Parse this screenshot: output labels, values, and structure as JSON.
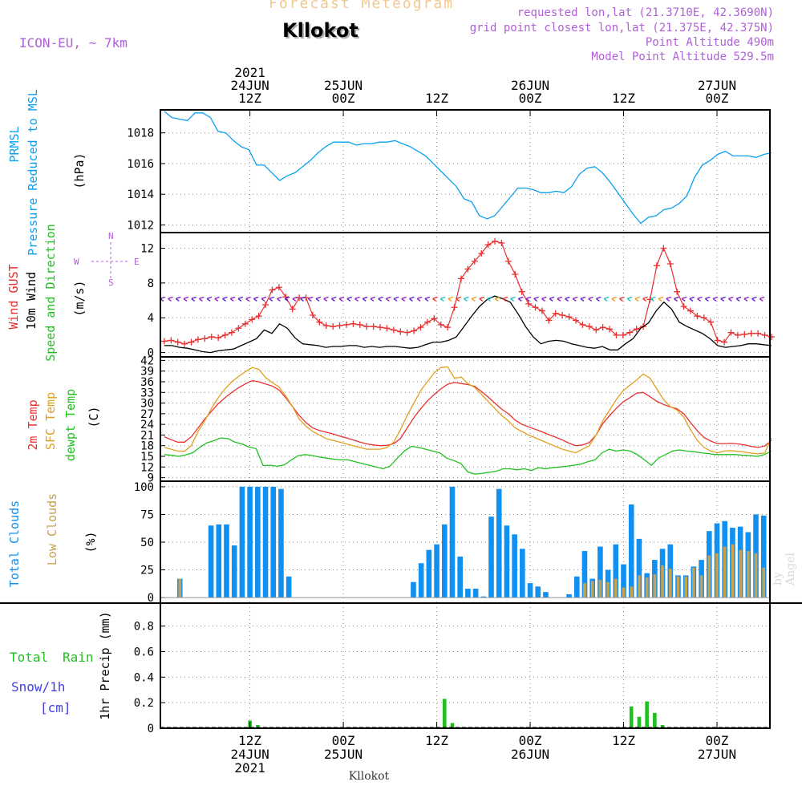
{
  "header": {
    "title": "Forecast Meteogram",
    "location": "Kllokot",
    "model": "ICON-EU, ~ 7km",
    "requested": "requested lon,lat (21.3710E, 42.3690N)",
    "grid": "grid point closest lon,lat (21.375E, 42.375N)",
    "point_altitude": "Point Altitude 490m",
    "model_altitude": "Model Point Altitude 529.5m",
    "footer_location": "Kllokot",
    "watermark": "by Angel"
  },
  "colors": {
    "pressure": "#0aa0f0",
    "gust": "#e83030",
    "wind": "#000000",
    "direction": "#20c020",
    "temp2m": "#e83030",
    "sfc": "#e0a020",
    "dewpt": "#20c020",
    "total_clouds": "#1090f0",
    "low_clouds": "#c8a050",
    "rain": "#20c020",
    "snow": "#4040e0",
    "axis_label": "#b060d8"
  },
  "time_axis": {
    "top_labels": [
      {
        "x": 12,
        "lines": [
          "2021",
          "24JUN",
          "12Z"
        ]
      },
      {
        "x": 24,
        "lines": [
          "25JUN",
          "00Z"
        ]
      },
      {
        "x": 36,
        "lines": [
          "12Z"
        ]
      },
      {
        "x": 48,
        "lines": [
          "26JUN",
          "00Z"
        ]
      },
      {
        "x": 60,
        "lines": [
          "12Z"
        ]
      },
      {
        "x": 72,
        "lines": [
          "27JUN",
          "00Z"
        ]
      }
    ],
    "bottom_labels": [
      {
        "x": 12,
        "lines": [
          "12Z",
          "24JUN",
          "2021"
        ]
      },
      {
        "x": 24,
        "lines": [
          "00Z",
          "25JUN"
        ]
      },
      {
        "x": 36,
        "lines": [
          "12Z"
        ]
      },
      {
        "x": 48,
        "lines": [
          "00Z",
          "26JUN"
        ]
      },
      {
        "x": 60,
        "lines": [
          "12Z"
        ]
      },
      {
        "x": 72,
        "lines": [
          "00Z",
          "27JUN"
        ]
      }
    ],
    "xlim": [
      0.5,
      78.8
    ],
    "unit": "hours since 24JUN 00Z"
  },
  "chart_data": [
    {
      "type": "line",
      "panel": "pressure",
      "ylabel": [
        "PRMSL",
        "Pressure Reduced to MSL"
      ],
      "unit": "(hPa)",
      "ylim": [
        1011.5,
        1019.5
      ],
      "yticks": [
        1012,
        1014,
        1016,
        1018
      ],
      "ytick_labels": [
        "1012",
        "1014",
        "1016",
        "1018"
      ],
      "grid": true,
      "series": [
        {
          "name": "PRMSL",
          "values": [
            1019.4,
            1019.0,
            1018.9,
            1018.8,
            1019.3,
            1019.3,
            1019.0,
            1018.1,
            1018.0,
            1017.5,
            1017.1,
            1016.9,
            1015.9,
            1015.9,
            1015.4,
            1014.9,
            1015.2,
            1015.4,
            1015.8,
            1016.2,
            1016.7,
            1017.1,
            1017.4,
            1017.4,
            1017.4,
            1017.2,
            1017.3,
            1017.3,
            1017.4,
            1017.4,
            1017.5,
            1017.3,
            1017.1,
            1016.8,
            1016.5,
            1016.0,
            1015.5,
            1015.0,
            1014.5,
            1013.7,
            1013.5,
            1012.6,
            1012.4,
            1012.6,
            1013.2,
            1013.8,
            1014.4,
            1014.4,
            1014.3,
            1014.1,
            1014.1,
            1014.2,
            1014.1,
            1014.5,
            1015.3,
            1015.7,
            1015.8,
            1015.4,
            1014.8,
            1014.1,
            1013.4,
            1012.7,
            1012.1,
            1012.5,
            1012.6,
            1013.0,
            1013.1,
            1013.4,
            1013.9,
            1015.1,
            1015.9,
            1016.2,
            1016.6,
            1016.8,
            1016.5,
            1016.5,
            1016.5,
            1016.4,
            1016.6,
            1016.7
          ]
        }
      ]
    },
    {
      "type": "line",
      "panel": "wind",
      "ylabel": [
        "Wind GUST",
        "10m Wind",
        "Speed and Direction"
      ],
      "unit": "(m/s)",
      "compass": [
        "N",
        "W",
        "E",
        "S"
      ],
      "ylim": [
        -0.5,
        13.8
      ],
      "yticks": [
        0,
        4,
        8,
        12
      ],
      "ytick_labels": [
        "0",
        "4",
        "8",
        "12"
      ],
      "grid": true,
      "series": [
        {
          "name": "Wind GUST",
          "values": [
            1.3,
            1.4,
            1.2,
            1.0,
            1.2,
            1.5,
            1.6,
            1.8,
            1.7,
            2.0,
            2.3,
            2.8,
            3.3,
            3.8,
            4.2,
            5.5,
            7.2,
            7.5,
            6.4,
            5.0,
            6.3,
            6.3,
            4.3,
            3.5,
            3.1,
            3.0,
            3.1,
            3.2,
            3.3,
            3.2,
            3.0,
            3.0,
            2.9,
            2.8,
            2.6,
            2.4,
            2.3,
            2.5,
            2.9,
            3.5,
            3.9,
            3.2,
            2.9,
            5.2,
            8.5,
            9.6,
            10.5,
            11.4,
            12.4,
            12.8,
            12.6,
            10.5,
            9.0,
            7.0,
            5.6,
            5.2,
            4.8,
            3.7,
            4.5,
            4.3,
            4.1,
            3.7,
            3.2,
            3.0,
            2.6,
            2.9,
            2.7,
            2.0,
            2.0,
            2.3,
            2.7,
            3.0,
            6.1,
            10.0,
            12.0,
            10.2,
            7.0,
            5.3,
            4.8,
            4.2,
            4.0,
            3.5,
            1.4,
            1.2,
            2.3,
            2.0,
            2.1,
            2.2,
            2.2,
            2.0,
            1.8
          ]
        },
        {
          "name": "10m Wind",
          "values": [
            0.8,
            0.8,
            0.6,
            0.5,
            0.3,
            0.1,
            0.0,
            0.2,
            0.3,
            0.4,
            0.8,
            1.2,
            1.6,
            2.6,
            2.2,
            3.3,
            2.8,
            1.7,
            1.0,
            0.9,
            0.8,
            0.6,
            0.7,
            0.7,
            0.8,
            0.8,
            0.6,
            0.7,
            0.6,
            0.7,
            0.7,
            0.6,
            0.5,
            0.6,
            0.9,
            1.2,
            1.2,
            1.4,
            1.8,
            3.0,
            4.2,
            5.3,
            6.1,
            6.5,
            6.2,
            5.8,
            4.5,
            3.0,
            1.8,
            1.0,
            1.3,
            1.4,
            1.3,
            1.0,
            0.8,
            0.6,
            0.5,
            0.7,
            0.3,
            0.3,
            1.0,
            1.6,
            2.8,
            3.4,
            4.8,
            5.8,
            5.0,
            3.5,
            3.0,
            2.6,
            2.2,
            1.6,
            0.8,
            0.6,
            0.7,
            0.8,
            1.0,
            1.0,
            0.9,
            0.8
          ]
        }
      ],
      "direction_arrows": {
        "name": "Speed and Direction",
        "level": 6.2
      }
    },
    {
      "type": "line",
      "panel": "temperature",
      "ylabel": [
        "2m Temp",
        "SFC Temp",
        "dewpt Temp"
      ],
      "unit": "(C)",
      "ylim": [
        8,
        43
      ],
      "yticks": [
        9,
        12,
        15,
        18,
        21,
        24,
        27,
        30,
        33,
        36,
        39,
        42
      ],
      "ytick_labels": [
        "9",
        "12",
        "15",
        "18",
        "21",
        "24",
        "27",
        "30",
        "33",
        "36",
        "39",
        "42"
      ],
      "grid": true,
      "series": [
        {
          "name": "2m Temp",
          "values": [
            20.5,
            19.7,
            19.0,
            19.0,
            20.5,
            23.0,
            25.5,
            27.7,
            29.8,
            31.5,
            33.0,
            34.3,
            35.4,
            36.3,
            36.0,
            35.4,
            34.8,
            33.7,
            31.5,
            29.0,
            26.5,
            24.5,
            23.0,
            22.3,
            21.8,
            21.3,
            20.7,
            20.2,
            19.6,
            19.0,
            18.5,
            18.2,
            18.0,
            18.1,
            18.6,
            20.0,
            23.0,
            25.9,
            28.4,
            30.6,
            32.4,
            34.0,
            35.3,
            35.8,
            35.5,
            35.2,
            34.7,
            33.3,
            31.7,
            30.0,
            28.3,
            27.0,
            25.2,
            24.0,
            23.3,
            22.6,
            21.9,
            21.1,
            20.4,
            19.6,
            18.7,
            18.0,
            18.2,
            18.9,
            21.0,
            24.2,
            26.5,
            28.5,
            30.3,
            31.5,
            32.8,
            33.0,
            31.8,
            30.5,
            29.6,
            28.9,
            28.4,
            27.0,
            24.5,
            22.2,
            20.3,
            19.3,
            18.6,
            18.6,
            18.7,
            18.5,
            18.2,
            17.8,
            17.5,
            17.9,
            19.5
          ]
        },
        {
          "name": "SFC Temp",
          "values": [
            17.5,
            17.0,
            16.5,
            16.4,
            18.0,
            22.0,
            25.0,
            28.5,
            31.5,
            34.0,
            36.0,
            37.5,
            38.8,
            40.0,
            39.5,
            37.2,
            35.8,
            34.5,
            32.0,
            29.0,
            25.5,
            23.5,
            22.0,
            21.0,
            20.0,
            19.5,
            19.0,
            18.5,
            18.0,
            17.5,
            17.0,
            17.0,
            17.0,
            17.5,
            19.0,
            22.5,
            26.5,
            30.0,
            33.5,
            36.0,
            38.5,
            40.0,
            40.2,
            37.0,
            37.3,
            35.5,
            34.4,
            32.5,
            30.5,
            28.5,
            26.5,
            25.0,
            23.0,
            22.0,
            21.0,
            20.2,
            19.4,
            18.6,
            17.8,
            17.0,
            16.5,
            16.0,
            17.0,
            18.0,
            21.0,
            25.0,
            28.0,
            31.0,
            33.5,
            35.0,
            36.5,
            38.2,
            37.0,
            34.0,
            31.0,
            29.0,
            28.0,
            26.0,
            22.5,
            19.5,
            17.5,
            16.5,
            16.0,
            16.5,
            16.6,
            16.4,
            16.2,
            15.9,
            15.7,
            16.0,
            20.2
          ]
        },
        {
          "name": "dewpt Temp",
          "values": [
            15.5,
            15.3,
            15.0,
            15.4,
            16.0,
            17.5,
            18.8,
            19.4,
            20.2,
            20.0,
            19.0,
            18.5,
            17.6,
            17.2,
            12.4,
            12.5,
            12.2,
            12.6,
            14.0,
            15.2,
            15.5,
            15.2,
            14.8,
            14.5,
            14.2,
            14.0,
            14.0,
            13.5,
            13.0,
            12.5,
            12.0,
            11.5,
            12.3,
            14.5,
            16.5,
            17.8,
            17.5,
            17.0,
            16.5,
            16.0,
            14.5,
            13.8,
            13.0,
            10.6,
            10.0,
            10.2,
            10.5,
            10.8,
            11.5,
            11.5,
            11.2,
            11.5,
            11.0,
            11.8,
            11.5,
            11.8,
            12.0,
            12.2,
            12.5,
            12.8,
            13.5,
            14.0,
            16.0,
            17.0,
            16.5,
            16.8,
            16.5,
            15.5,
            14.0,
            12.5,
            14.5,
            15.5,
            16.5,
            16.8,
            16.5,
            16.3,
            16.0,
            15.8,
            15.5,
            15.5,
            15.5,
            15.5,
            15.3,
            15.2,
            15.0,
            15.5,
            16.5
          ]
        }
      ]
    },
    {
      "type": "bar",
      "panel": "clouds",
      "ylabel": [
        "Total Clouds",
        "Low Clouds"
      ],
      "unit": "(%)",
      "ylim": [
        -5,
        105
      ],
      "yticks": [
        0,
        25,
        50,
        75,
        100
      ],
      "ytick_labels": [
        "0",
        "25",
        "50",
        "75",
        "100"
      ],
      "grid": true,
      "x": [
        3,
        4,
        5,
        6,
        7,
        8,
        9,
        10,
        11,
        12,
        13,
        14,
        15,
        16,
        17,
        18,
        19,
        20,
        21,
        22,
        23,
        24,
        25,
        26,
        27,
        28,
        29,
        30,
        31,
        32,
        33,
        34,
        35,
        36,
        37,
        38,
        39,
        40,
        41,
        42,
        43,
        44,
        45,
        46,
        47,
        48,
        49,
        50,
        51,
        52,
        53,
        54,
        55,
        56,
        57,
        58,
        59,
        60,
        61,
        62,
        63,
        64,
        65,
        66,
        67,
        68,
        69,
        70,
        71,
        72,
        73,
        74,
        75,
        76,
        77,
        78
      ],
      "series": [
        {
          "name": "Total Clouds",
          "values": [
            17,
            0,
            0,
            0,
            65,
            66,
            66,
            47,
            100,
            100,
            100,
            100,
            100,
            98,
            19,
            0,
            0,
            0,
            0,
            0,
            0,
            0,
            0,
            0,
            0,
            0,
            0,
            0,
            0,
            0,
            14,
            31,
            43,
            48,
            66,
            100,
            37,
            8,
            8,
            1,
            73,
            98,
            65,
            57,
            44,
            13,
            10,
            5,
            0,
            0,
            3,
            19,
            42,
            17,
            46,
            25,
            48,
            30,
            84,
            53,
            22,
            34,
            44,
            48,
            20,
            20,
            28,
            34,
            60,
            67,
            69,
            63,
            64,
            59,
            75,
            74
          ]
        },
        {
          "name": "Low Clouds",
          "values": [
            17,
            0,
            0,
            0,
            0,
            0,
            0,
            0,
            0,
            0,
            0,
            0,
            0,
            0,
            0,
            0,
            0,
            0,
            0,
            0,
            0,
            0,
            0,
            0,
            0,
            0,
            0,
            0,
            0,
            0,
            0,
            0,
            0,
            0,
            0,
            0,
            0,
            0,
            0,
            0,
            0,
            0,
            0,
            0,
            0,
            0,
            0,
            0,
            0,
            0,
            0,
            0,
            13,
            15,
            16,
            14,
            17,
            9,
            10,
            20,
            18,
            21,
            29,
            26,
            19,
            19,
            27,
            20,
            38,
            40,
            46,
            48,
            43,
            42,
            40,
            27
          ]
        }
      ]
    },
    {
      "type": "bar",
      "panel": "precip",
      "ylabel": [
        "Total",
        "Rain",
        "Snow/1h",
        "[cm]"
      ],
      "unit": "1hr Precip (mm)",
      "ylim": [
        0,
        0.98
      ],
      "yticks": [
        0,
        0.2,
        0.4,
        0.6,
        0.8
      ],
      "ytick_labels": [
        "0",
        "0.2",
        "0.4",
        "0.6",
        "0.8"
      ],
      "grid": true,
      "x": [
        12,
        13,
        36,
        37,
        38,
        60,
        61,
        62,
        63,
        64,
        65
      ],
      "series": [
        {
          "name": "Total Rain",
          "values": [
            0.06,
            0.025,
            0.01,
            0.23,
            0.04,
            0.01,
            0.17,
            0.09,
            0.21,
            0.12,
            0.025
          ]
        }
      ]
    }
  ]
}
